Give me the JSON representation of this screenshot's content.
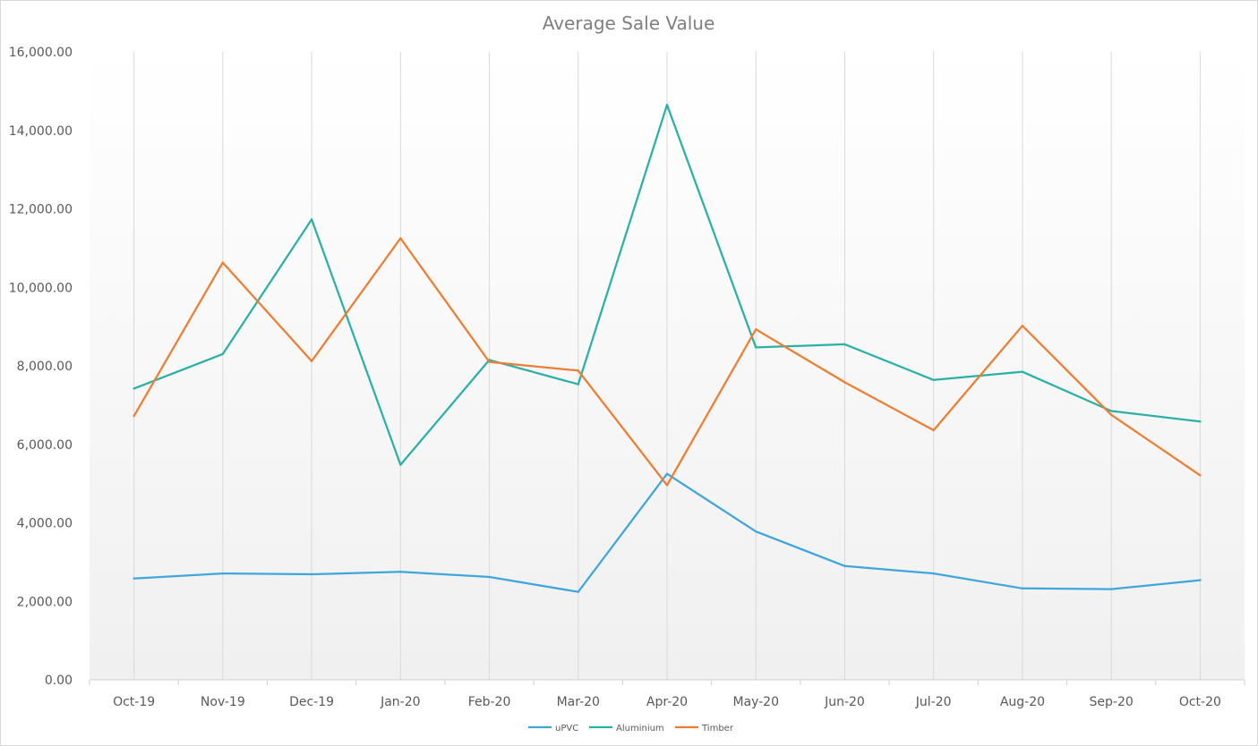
{
  "chart_data": {
    "type": "line",
    "title": "Average Sale Value",
    "xlabel": "",
    "ylabel": "",
    "ylim": [
      0,
      16000
    ],
    "yticks": [
      "0.00",
      "2,000.00",
      "4,000.00",
      "6,000.00",
      "8,000.00",
      "10,000.00",
      "12,000.00",
      "14,000.00",
      "16,000.00"
    ],
    "ytick_values": [
      0,
      2000,
      4000,
      6000,
      8000,
      10000,
      12000,
      14000,
      16000
    ],
    "categories": [
      "Oct-19",
      "Nov-19",
      "Dec-19",
      "Jan-20",
      "Feb-20",
      "Mar-20",
      "Apr-20",
      "May-20",
      "Jun-20",
      "Jul-20",
      "Aug-20",
      "Sep-20",
      "Oct-20"
    ],
    "grid": "vertical",
    "legend_position": "bottom",
    "series": [
      {
        "name": "uPVC",
        "color": "#3fa6dd",
        "values": [
          2580,
          2710,
          2690,
          2750,
          2620,
          2240,
          5250,
          3780,
          2900,
          2710,
          2330,
          2310,
          2540
        ]
      },
      {
        "name": "Aluminium",
        "color": "#2bb0a7",
        "values": [
          7420,
          8300,
          11730,
          5480,
          8150,
          7530,
          14650,
          8470,
          8550,
          7640,
          7850,
          6850,
          6580
        ]
      },
      {
        "name": "Timber",
        "color": "#ed7d31",
        "values": [
          6720,
          10630,
          8120,
          11250,
          8100,
          7880,
          4960,
          8930,
          7580,
          6360,
          9020,
          6750,
          5210
        ]
      }
    ]
  }
}
